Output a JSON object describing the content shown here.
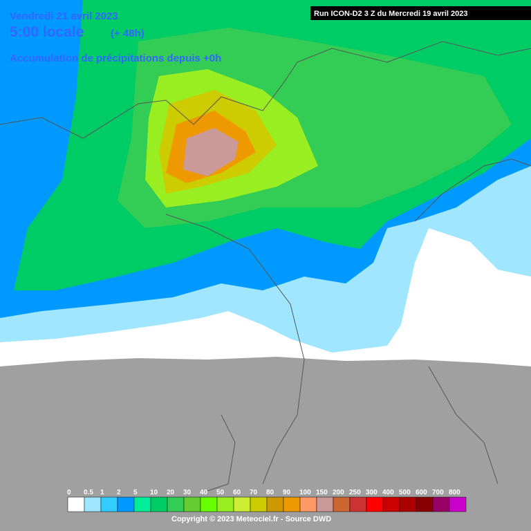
{
  "header": {
    "date": "Vendredi 21 avril 2023",
    "time": "5:00 locale",
    "lead": "(+ 48h)",
    "subtitle": "Accumulation de précipitations depuis +0h",
    "run": "Run ICON-D2 3 Z du Mercredi 19 avril 2023"
  },
  "legend": {
    "labels": [
      0,
      0.5,
      1,
      2,
      5,
      10,
      20,
      30,
      40,
      50,
      60,
      70,
      80,
      90,
      100,
      150,
      200,
      250,
      300,
      400,
      500,
      600,
      700,
      800
    ],
    "colors": [
      "#ffffff",
      "#a0e6ff",
      "#33ccff",
      "#0099ff",
      "#00ee99",
      "#00cc66",
      "#33cc55",
      "#66cc33",
      "#66ff00",
      "#99ee22",
      "#ccee33",
      "#cccc00",
      "#cc9900",
      "#ee9900",
      "#ff9966",
      "#cc9999",
      "#cc6633",
      "#cc3333",
      "#ff0000",
      "#cc0000",
      "#aa0000",
      "#880000",
      "#990066",
      "#cc00cc"
    ]
  },
  "footer": {
    "copyright": "Copyright © 2023 Meteociel.fr - Source DWD"
  }
}
